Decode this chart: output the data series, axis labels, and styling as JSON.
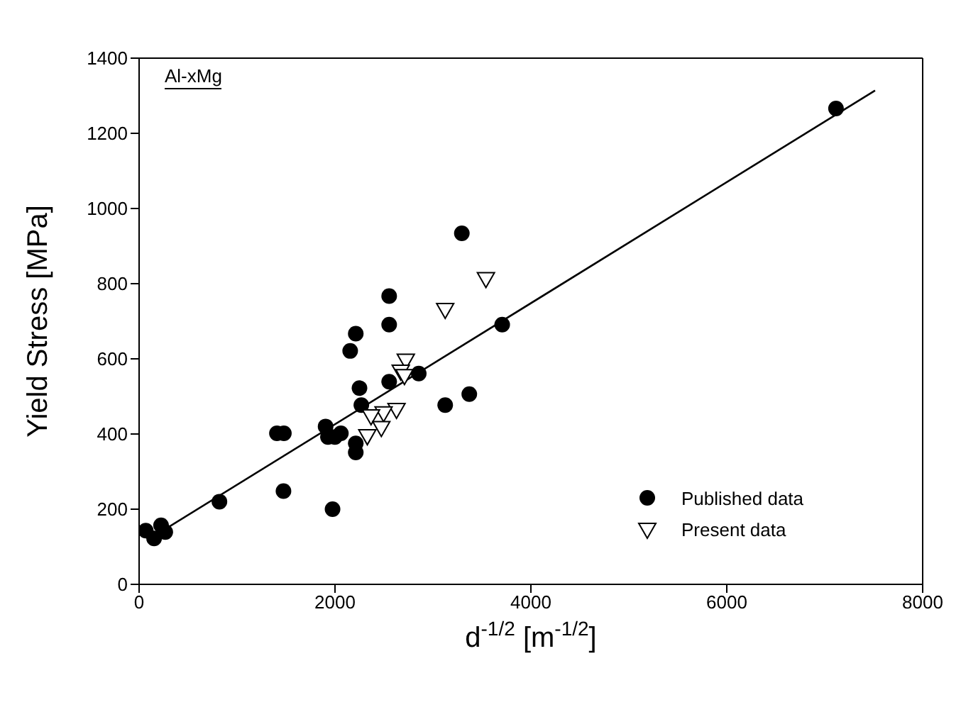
{
  "chart_data": {
    "type": "scatter",
    "xlabel": "d$^{-1/2}$ [m$^{-1/2}$]",
    "ylabel": "Yield Stress [MPa]",
    "annotations": [
      "Al-xMg"
    ],
    "xlim": [
      0,
      8000
    ],
    "xticks": [
      0,
      2000,
      4000,
      6000,
      8000
    ],
    "ylim": [
      0,
      1400
    ],
    "yticks": [
      0,
      200,
      400,
      600,
      800,
      1000,
      1200,
      1400
    ],
    "legend": "bottom right",
    "series": [
      {
        "name": "Published data",
        "color": "#000000",
        "marker": "circle",
        "x": [
          68,
          153,
          224,
          267,
          820,
          1474,
          3295,
          2553,
          2553,
          2212,
          2155,
          3707,
          2855,
          2553,
          2250,
          2269,
          3125,
          3371,
          1904,
          1407,
          1478,
          1928,
          1999,
          2060,
          2212,
          2212,
          1975,
          7115
        ],
        "values": [
          143,
          122,
          157,
          139,
          220,
          248,
          934,
          767,
          691,
          667,
          621,
          691,
          561,
          539,
          522,
          477,
          477,
          506,
          420,
          402,
          402,
          392,
          392,
          402,
          375,
          351,
          200,
          1266
        ]
      },
      {
        "name": "Present data",
        "color": "#000000",
        "marker": "triangle",
        "x": [
          3541,
          3125,
          2723,
          2671,
          2709,
          2628,
          2496,
          2368,
          2473,
          2330
        ],
        "values": [
          814,
          732,
          597,
          568,
          556,
          466,
          457,
          449,
          418,
          396
        ]
      },
      {
        "type": "line",
        "color": "#000000",
        "marker": "none",
        "x": [
          100,
          7514
        ],
        "values": [
          120,
          1314
        ]
      }
    ]
  }
}
